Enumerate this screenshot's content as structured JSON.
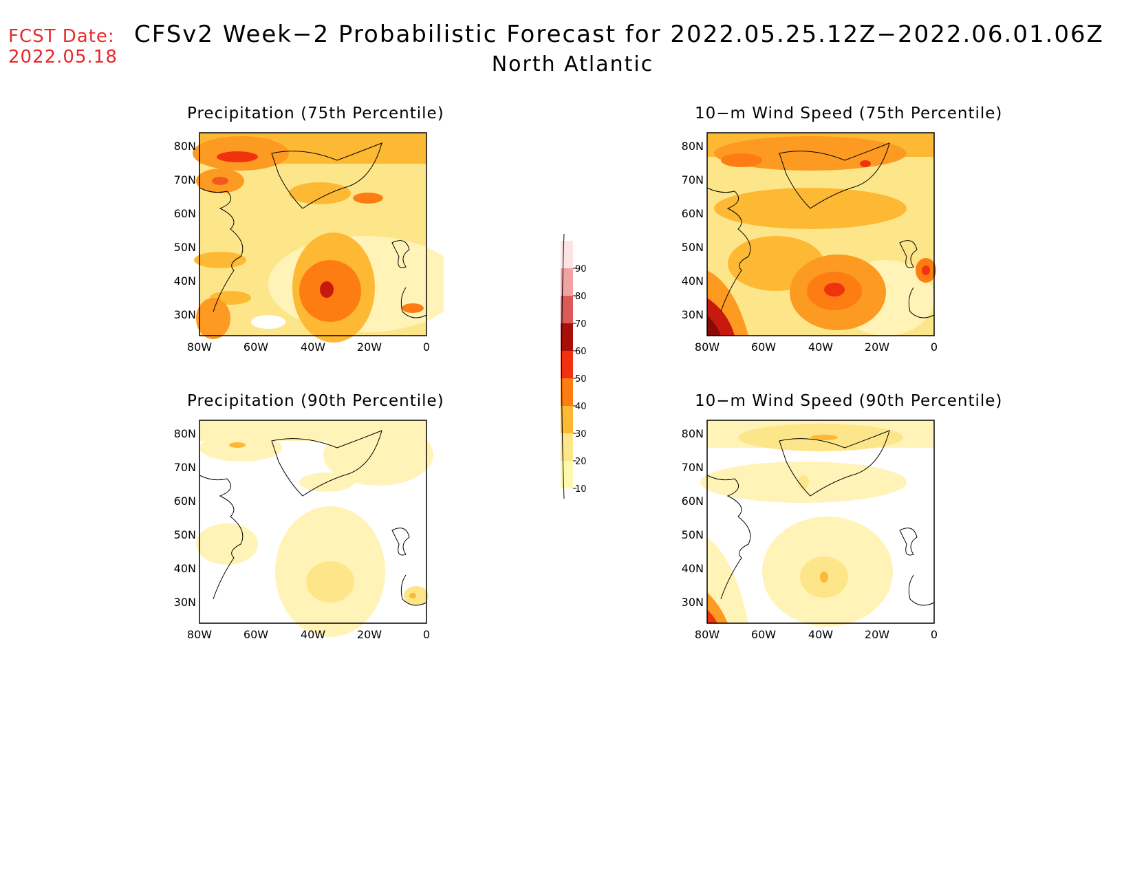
{
  "fcst": {
    "line1": "FCST Date:",
    "line2": "2022.05.18"
  },
  "title": "CFSv2 Week−2 Probabilistic Forecast for 2022.05.25.12Z−2022.06.01.06Z",
  "subtitle": "North Atlantic",
  "panels": [
    {
      "title": "Precipitation (75th Percentile)"
    },
    {
      "title": "10−m Wind Speed (75th Percentile)"
    },
    {
      "title": "Precipitation (90th Percentile)"
    },
    {
      "title": "10−m Wind Speed (90th Percentile)"
    }
  ],
  "map_axes": {
    "lat_labels": [
      "80N",
      "70N",
      "60N",
      "50N",
      "40N",
      "30N"
    ],
    "lon_labels": [
      "80W",
      "60W",
      "40W",
      "20W",
      "0"
    ]
  },
  "colorbar": {
    "labels": [
      "10",
      "20",
      "30",
      "40",
      "50",
      "60",
      "70",
      "80",
      "90"
    ],
    "colors": [
      "#fff8b0",
      "#fde68a",
      "#fdb933",
      "#fd7d12",
      "#f0320f",
      "#a80f0a",
      "#db5a57",
      "#f2a2a2",
      "#fde4e4"
    ]
  }
}
